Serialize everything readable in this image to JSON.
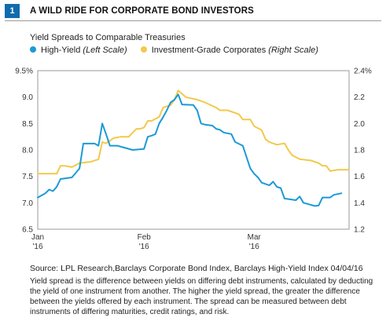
{
  "figure": {
    "number": "1",
    "title": "A WILD RIDE FOR CORPORATE BOND INVESTORS",
    "subtitle": "Yield Spreads to Comparable Treasuries",
    "source": "Source: LPL Research,Barclays Corporate Bond Index, Barclays High-Yield Index  04/04/16",
    "note": "Yield spread is the difference between yields on differing debt instruments, calculated by deducting the yield of one instrument from another. The higher the yield spread, the greater the difference between the yields offered by each instrument. The spread can be measured between debt instruments of differing maturities, credit ratings, and risk."
  },
  "colors": {
    "high_yield": "#1b9ad6",
    "investment_grade": "#f2c94c",
    "badge": "#0f6cae",
    "frame": "#999999"
  },
  "chart_data": {
    "type": "line",
    "grid": false,
    "x_ticks": [
      {
        "x": 0,
        "line1": "Jan",
        "line2": "'16"
      },
      {
        "x": 28,
        "line1": "Feb",
        "line2": "'16"
      },
      {
        "x": 57,
        "line1": "Mar",
        "line2": "'16"
      }
    ],
    "xlim": [
      0,
      82
    ],
    "y_left": {
      "lim": [
        6.5,
        9.5
      ],
      "ticks": [
        "9.5%",
        "9.0",
        "8.5",
        "8.0",
        "7.5",
        "7.0",
        "6.5"
      ],
      "tick_values": [
        9.5,
        9.0,
        8.5,
        8.0,
        7.5,
        7.0,
        6.5
      ]
    },
    "y_right": {
      "lim": [
        1.2,
        2.4
      ],
      "ticks": [
        "2.4%",
        "2.2",
        "2.0",
        "1.8",
        "1.6",
        "1.4",
        "1.2"
      ],
      "tick_values": [
        2.4,
        2.2,
        2.0,
        1.8,
        1.6,
        1.4,
        1.2
      ]
    },
    "series": [
      {
        "name": "High-Yield",
        "axis_note": "(Left Scale)",
        "axis": "left",
        "points": [
          [
            0,
            7.1
          ],
          [
            2,
            7.18
          ],
          [
            3,
            7.25
          ],
          [
            4,
            7.22
          ],
          [
            5,
            7.3
          ],
          [
            6,
            7.45
          ],
          [
            7,
            7.46
          ],
          [
            9,
            7.48
          ],
          [
            11,
            7.65
          ],
          [
            12,
            8.12
          ],
          [
            15,
            8.12
          ],
          [
            16,
            8.08
          ],
          [
            17,
            8.5
          ],
          [
            18,
            8.3
          ],
          [
            19,
            8.08
          ],
          [
            21,
            8.08
          ],
          [
            22,
            8.06
          ],
          [
            25,
            8.0
          ],
          [
            28,
            8.02
          ],
          [
            29,
            8.25
          ],
          [
            30,
            8.27
          ],
          [
            31,
            8.3
          ],
          [
            32,
            8.5
          ],
          [
            33,
            8.62
          ],
          [
            34,
            8.75
          ],
          [
            35,
            8.9
          ],
          [
            36,
            8.95
          ],
          [
            37,
            9.05
          ],
          [
            38,
            8.86
          ],
          [
            41,
            8.85
          ],
          [
            42,
            8.75
          ],
          [
            43,
            8.5
          ],
          [
            44,
            8.48
          ],
          [
            46,
            8.46
          ],
          [
            47,
            8.4
          ],
          [
            48,
            8.38
          ],
          [
            49,
            8.33
          ],
          [
            51,
            8.3
          ],
          [
            52,
            8.15
          ],
          [
            54,
            8.08
          ],
          [
            56,
            7.65
          ],
          [
            57,
            7.55
          ],
          [
            58,
            7.48
          ],
          [
            59,
            7.38
          ],
          [
            61,
            7.33
          ],
          [
            62,
            7.4
          ],
          [
            63,
            7.3
          ],
          [
            64,
            7.28
          ],
          [
            65,
            7.08
          ],
          [
            68,
            7.05
          ],
          [
            69,
            7.12
          ],
          [
            70,
            7.0
          ],
          [
            71,
            6.98
          ],
          [
            73,
            6.94
          ],
          [
            74,
            6.95
          ],
          [
            75,
            7.1
          ],
          [
            77,
            7.1
          ],
          [
            78,
            7.15
          ],
          [
            80,
            7.18
          ]
        ]
      },
      {
        "name": "Investment-Grade Corporates",
        "axis_note": "(Right Scale)",
        "axis": "right",
        "points": [
          [
            0,
            1.62
          ],
          [
            5,
            1.62
          ],
          [
            6,
            1.68
          ],
          [
            7,
            1.68
          ],
          [
            9,
            1.67
          ],
          [
            11,
            1.7
          ],
          [
            14,
            1.71
          ],
          [
            16,
            1.73
          ],
          [
            17,
            1.86
          ],
          [
            18,
            1.85
          ],
          [
            20,
            1.89
          ],
          [
            22,
            1.9
          ],
          [
            24,
            1.9
          ],
          [
            25,
            1.93
          ],
          [
            26,
            1.96
          ],
          [
            27,
            1.96
          ],
          [
            28,
            1.97
          ],
          [
            29,
            2.02
          ],
          [
            30,
            2.02
          ],
          [
            32,
            2.05
          ],
          [
            33,
            2.12
          ],
          [
            35,
            2.14
          ],
          [
            36,
            2.18
          ],
          [
            37,
            2.25
          ],
          [
            39,
            2.2
          ],
          [
            42,
            2.18
          ],
          [
            44,
            2.16
          ],
          [
            47,
            2.12
          ],
          [
            48,
            2.1
          ],
          [
            50,
            2.1
          ],
          [
            53,
            2.07
          ],
          [
            54,
            2.03
          ],
          [
            56,
            2.03
          ],
          [
            57,
            1.98
          ],
          [
            59,
            1.95
          ],
          [
            60,
            1.88
          ],
          [
            61,
            1.86
          ],
          [
            63,
            1.84
          ],
          [
            65,
            1.85
          ],
          [
            66,
            1.8
          ],
          [
            67,
            1.76
          ],
          [
            69,
            1.73
          ],
          [
            72,
            1.72
          ],
          [
            74,
            1.7
          ],
          [
            75,
            1.68
          ],
          [
            76,
            1.68
          ],
          [
            77,
            1.64
          ],
          [
            79,
            1.65
          ],
          [
            82,
            1.65
          ]
        ]
      }
    ]
  }
}
